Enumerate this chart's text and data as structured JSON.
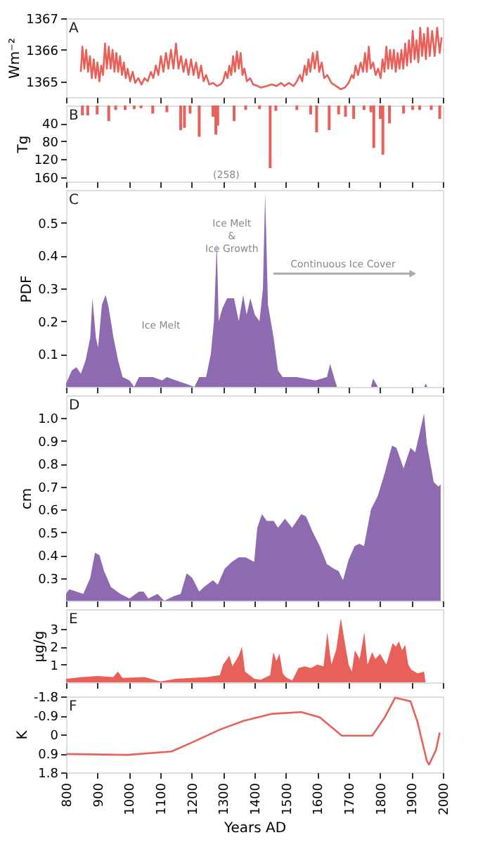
{
  "chart_data": [
    {
      "type": "line",
      "title": "A",
      "ylabel": "Wm⁻²",
      "color": "#e8605a",
      "xlim": [
        800,
        2000
      ],
      "xticks": [
        800,
        900,
        1000,
        1100,
        1200,
        1300,
        1400,
        1500,
        1600,
        1700,
        1800,
        1900,
        2000
      ],
      "ylim": [
        1364.5,
        1367
      ],
      "yticks": [
        1365,
        1366,
        1367
      ],
      "tick_labels": "y",
      "x": [
        847,
        852,
        858,
        864,
        870,
        876,
        882,
        888,
        894,
        900,
        906,
        912,
        918,
        924,
        930,
        936,
        942,
        948,
        954,
        960,
        966,
        972,
        978,
        984,
        990,
        996,
        1004,
        1012,
        1020,
        1030,
        1040,
        1050,
        1060,
        1070,
        1078,
        1086,
        1094,
        1102,
        1110,
        1118,
        1126,
        1134,
        1142,
        1150,
        1158,
        1166,
        1174,
        1182,
        1190,
        1198,
        1206,
        1214,
        1222,
        1230,
        1238,
        1246,
        1256,
        1268,
        1280,
        1292,
        1300,
        1308,
        1314,
        1320,
        1326,
        1332,
        1338,
        1344,
        1350,
        1356,
        1362,
        1368,
        1376,
        1386,
        1396,
        1410,
        1420,
        1440,
        1455,
        1470,
        1485,
        1495,
        1510,
        1525,
        1535,
        1545,
        1552,
        1560,
        1566,
        1572,
        1578,
        1586,
        1592,
        1600,
        1606,
        1614,
        1622,
        1632,
        1645,
        1660,
        1675,
        1688,
        1700,
        1710,
        1716,
        1722,
        1730,
        1738,
        1746,
        1752,
        1758,
        1764,
        1770,
        1778,
        1786,
        1794,
        1802,
        1808,
        1814,
        1820,
        1826,
        1832,
        1838,
        1844,
        1850,
        1856,
        1862,
        1868,
        1874,
        1880,
        1886,
        1892,
        1898,
        1904,
        1910,
        1916,
        1922,
        1928,
        1934,
        1940,
        1946,
        1952,
        1958,
        1966,
        1974,
        1982,
        1990,
        1996
      ],
      "values": [
        1365.3,
        1366.1,
        1365.4,
        1366.0,
        1365.3,
        1365.8,
        1365.1,
        1365.7,
        1365.1,
        1365.6,
        1365.0,
        1365.5,
        1365.2,
        1366.2,
        1365.4,
        1366.1,
        1365.4,
        1366.0,
        1365.3,
        1365.9,
        1365.3,
        1365.8,
        1365.2,
        1365.6,
        1365.1,
        1365.4,
        1365.0,
        1365.3,
        1364.95,
        1365.1,
        1364.9,
        1365.1,
        1365.0,
        1365.3,
        1365.1,
        1365.5,
        1365.2,
        1365.8,
        1365.3,
        1365.9,
        1365.4,
        1366.0,
        1365.4,
        1366.2,
        1365.4,
        1365.8,
        1365.3,
        1365.7,
        1365.2,
        1365.7,
        1365.2,
        1365.6,
        1365.1,
        1365.5,
        1365.0,
        1365.2,
        1364.9,
        1364.95,
        1364.85,
        1364.9,
        1365.0,
        1365.3,
        1365.1,
        1365.5,
        1365.2,
        1365.8,
        1365.3,
        1365.95,
        1365.4,
        1365.9,
        1365.2,
        1365.4,
        1365.0,
        1365.1,
        1364.9,
        1364.85,
        1364.8,
        1364.85,
        1364.9,
        1364.85,
        1364.95,
        1364.85,
        1364.95,
        1364.85,
        1365.0,
        1365.2,
        1365.0,
        1365.5,
        1365.2,
        1365.7,
        1365.3,
        1365.9,
        1365.4,
        1365.95,
        1365.3,
        1365.6,
        1365.1,
        1365.2,
        1364.95,
        1364.85,
        1364.75,
        1364.8,
        1364.95,
        1365.2,
        1365.1,
        1365.5,
        1365.2,
        1365.6,
        1365.3,
        1365.9,
        1365.3,
        1366.1,
        1365.4,
        1365.6,
        1365.2,
        1365.4,
        1365.1,
        1365.7,
        1365.3,
        1366.1,
        1365.4,
        1366.0,
        1365.4,
        1366.0,
        1365.3,
        1365.9,
        1365.4,
        1366.0,
        1365.4,
        1366.2,
        1365.5,
        1366.3,
        1365.6,
        1366.6,
        1365.7,
        1366.3,
        1365.6,
        1366.7,
        1365.8,
        1366.5,
        1365.7,
        1366.7,
        1365.8,
        1366.6,
        1365.8,
        1366.7,
        1365.9,
        1366.4
      ]
    },
    {
      "type": "bar",
      "title": "B",
      "ylabel": "Tg",
      "color": "#e8605a",
      "xlim": [
        800,
        2000
      ],
      "xticks": [
        800,
        900,
        1000,
        1100,
        1200,
        1300,
        1400,
        1500,
        1600,
        1700,
        1800,
        1900,
        2000
      ],
      "ylim": [
        170,
        0
      ],
      "yticks": [
        40,
        80,
        120,
        160
      ],
      "tick_labels": "y",
      "x": [
        852,
        869,
        899,
        936,
        958,
        988,
        1017,
        1039,
        1076,
        1121,
        1165,
        1177,
        1195,
        1224,
        1258,
        1268,
        1277,
        1283,
        1335,
        1372,
        1416,
        1450,
        1468,
        1535,
        1579,
        1598,
        1638,
        1668,
        1690,
        1716,
        1749,
        1771,
        1780,
        1801,
        1809,
        1830,
        1875,
        1904,
        1926,
        1963,
        1990
      ],
      "values": [
        22,
        22,
        20,
        35,
        10,
        10,
        8,
        6,
        18,
        15,
        55,
        50,
        18,
        70,
        null,
        25,
        65,
        45,
        35,
        10,
        8,
        140,
        12,
        10,
        20,
        60,
        55,
        20,
        25,
        30,
        10,
        15,
        95,
        30,
        110,
        40,
        18,
        10,
        10,
        10,
        30
      ],
      "annotations": [
        "(258)"
      ]
    },
    {
      "type": "area",
      "title": "C",
      "ylabel": "PDF",
      "color": "#8e6bb0",
      "xlim": [
        800,
        2000
      ],
      "xticks": [
        800,
        900,
        1000,
        1100,
        1200,
        1300,
        1400,
        1500,
        1600,
        1700,
        1800,
        1900,
        2000
      ],
      "ylim": [
        0,
        0.6
      ],
      "yticks": [
        0.1,
        0.2,
        0.3,
        0.4,
        0.5
      ],
      "tick_labels": "y",
      "x": [
        800,
        818,
        833,
        847,
        862,
        877,
        884,
        895,
        902,
        914,
        926,
        936,
        951,
        966,
        980,
        1002,
        1017,
        1032,
        1076,
        1106,
        1121,
        1150,
        1180,
        1209,
        1224,
        1246,
        1261,
        1271,
        1280,
        1286,
        1298,
        1313,
        1335,
        1350,
        1364,
        1375,
        1387,
        1401,
        1416,
        1427,
        1434,
        1443,
        1461,
        1475,
        1490,
        1535,
        1594,
        1631,
        1641,
        1653,
        1663,
        1771,
        1778,
        1793,
        1941,
        1945,
        1951,
        2000
      ],
      "values": [
        0.01,
        0.05,
        0.06,
        0.04,
        0.08,
        0.15,
        0.27,
        0.15,
        0.12,
        0.25,
        0.28,
        0.24,
        0.15,
        0.08,
        0.03,
        0.02,
        0.0,
        0.03,
        0.03,
        0.02,
        0.03,
        0.02,
        0.01,
        0.0,
        0.03,
        0.03,
        0.1,
        0.2,
        0.44,
        0.2,
        0.24,
        0.27,
        0.27,
        0.2,
        0.28,
        0.22,
        0.27,
        0.22,
        0.2,
        0.3,
        0.59,
        0.25,
        0.15,
        0.05,
        0.03,
        0.03,
        0.02,
        0.03,
        0.07,
        0.03,
        0.0,
        0.0,
        0.025,
        0.0,
        0.0,
        0.01,
        0.0,
        0.0
      ],
      "annotations": [
        "Ice Melt",
        "Ice Melt\n&\nIce Growth",
        "Continuous Ice Cover"
      ]
    },
    {
      "type": "area",
      "title": "D",
      "ylabel": "cm",
      "color": "#8e6bb0",
      "xlim": [
        800,
        2000
      ],
      "xticks": [
        800,
        900,
        1000,
        1100,
        1200,
        1300,
        1400,
        1500,
        1600,
        1700,
        1800,
        1900,
        2000
      ],
      "ylim": [
        0.2,
        1.1
      ],
      "yticks": [
        0.3,
        0.4,
        0.5,
        0.6,
        0.7,
        0.8,
        0.9,
        {
          "value": 1,
          "label": "1.0"
        }
      ],
      "tick_labels": "y",
      "x": [
        800,
        810,
        833,
        855,
        877,
        892,
        906,
        921,
        943,
        973,
        1002,
        1032,
        1047,
        1062,
        1091,
        1113,
        1143,
        1165,
        1184,
        1202,
        1224,
        1239,
        1268,
        1283,
        1305,
        1328,
        1350,
        1372,
        1399,
        1409,
        1424,
        1439,
        1461,
        1475,
        1497,
        1520,
        1549,
        1564,
        1586,
        1608,
        1631,
        1653,
        1668,
        1682,
        1700,
        1719,
        1734,
        1749,
        1771,
        1793,
        1815,
        1838,
        1852,
        1875,
        1897,
        1912,
        1940,
        1949,
        1971,
        1986,
        1993
      ],
      "values": [
        0.23,
        0.25,
        0.24,
        0.23,
        0.3,
        0.41,
        0.4,
        0.33,
        0.26,
        0.23,
        0.21,
        0.24,
        0.24,
        0.21,
        0.23,
        0.2,
        0.22,
        0.23,
        0.32,
        0.3,
        0.24,
        0.26,
        0.29,
        0.27,
        0.34,
        0.37,
        0.39,
        0.39,
        0.37,
        0.52,
        0.58,
        0.55,
        0.55,
        0.52,
        0.56,
        0.52,
        0.58,
        0.57,
        0.5,
        0.44,
        0.36,
        0.34,
        0.33,
        0.29,
        0.38,
        0.44,
        0.45,
        0.44,
        0.6,
        0.66,
        0.76,
        0.88,
        0.87,
        0.78,
        0.87,
        0.85,
        1.02,
        0.89,
        0.72,
        0.7,
        0.71
      ]
    },
    {
      "type": "area",
      "title": "E",
      "ylabel": "µg/g",
      "color": "#e8605a",
      "xlim": [
        800,
        2000
      ],
      "xticks": [
        800,
        900,
        1000,
        1100,
        1200,
        1300,
        1400,
        1500,
        1600,
        1700,
        1800,
        1900,
        2000
      ],
      "ylim": [
        0,
        4.1
      ],
      "yticks": [
        1,
        2,
        3
      ],
      "tick_labels": "y",
      "x": [
        800,
        850,
        900,
        950,
        965,
        980,
        1050,
        1100,
        1150,
        1200,
        1250,
        1290,
        1300,
        1320,
        1330,
        1350,
        1360,
        1370,
        1400,
        1420,
        1450,
        1460,
        1470,
        1480,
        1490,
        1500,
        1520,
        1540,
        1560,
        1580,
        1600,
        1620,
        1632,
        1645,
        1660,
        1675,
        1690,
        1700,
        1710,
        1720,
        1735,
        1750,
        1760,
        1775,
        1785,
        1800,
        1820,
        1840,
        1850,
        1860,
        1870,
        1880,
        1890,
        1900,
        1920,
        1940,
        1945
      ],
      "values": [
        0.2,
        0.3,
        0.35,
        0.3,
        0.6,
        0.25,
        0.3,
        0.05,
        0.2,
        0.25,
        0.3,
        0.4,
        1.0,
        1.5,
        0.9,
        1.5,
        2.0,
        0.6,
        0.2,
        0.15,
        0.4,
        1.7,
        1.2,
        1.6,
        0.5,
        0.3,
        0.1,
        0.8,
        0.9,
        0.8,
        1.0,
        0.9,
        2.8,
        1.0,
        1.8,
        3.6,
        2.0,
        1.0,
        0.6,
        1.8,
        1.3,
        2.8,
        1.0,
        1.7,
        1.3,
        1.6,
        1.0,
        2.2,
        2.0,
        2.3,
        1.8,
        2.1,
        1.0,
        0.7,
        0.5,
        0.6,
        0.0
      ]
    },
    {
      "type": "line",
      "title": "F",
      "ylabel": "K",
      "xlabel": "Years AD",
      "color": "#e8605a",
      "xlim": [
        800,
        2000
      ],
      "xticks": [
        800,
        900,
        1000,
        1100,
        1200,
        1300,
        1400,
        1500,
        1600,
        1700,
        1800,
        1900,
        2000
      ],
      "ylim": [
        1.8,
        -1.8
      ],
      "yticks": [
        -1.8,
        -0.9,
        0,
        0.9,
        1.8
      ],
      "x": [
        800,
        995,
        1136,
        1209,
        1290,
        1365,
        1453,
        1549,
        1608,
        1678,
        1719,
        1775,
        1815,
        1848,
        1897,
        1919,
        1949,
        1956,
        1978,
        1990
      ],
      "values": [
        0.93,
        0.97,
        0.81,
        0.33,
        -0.23,
        -0.64,
        -0.97,
        -1.06,
        -0.81,
        0.06,
        0.06,
        0.06,
        -0.81,
        -1.74,
        -1.57,
        -0.6,
        1.26,
        1.43,
        0.75,
        -0.08
      ]
    }
  ]
}
